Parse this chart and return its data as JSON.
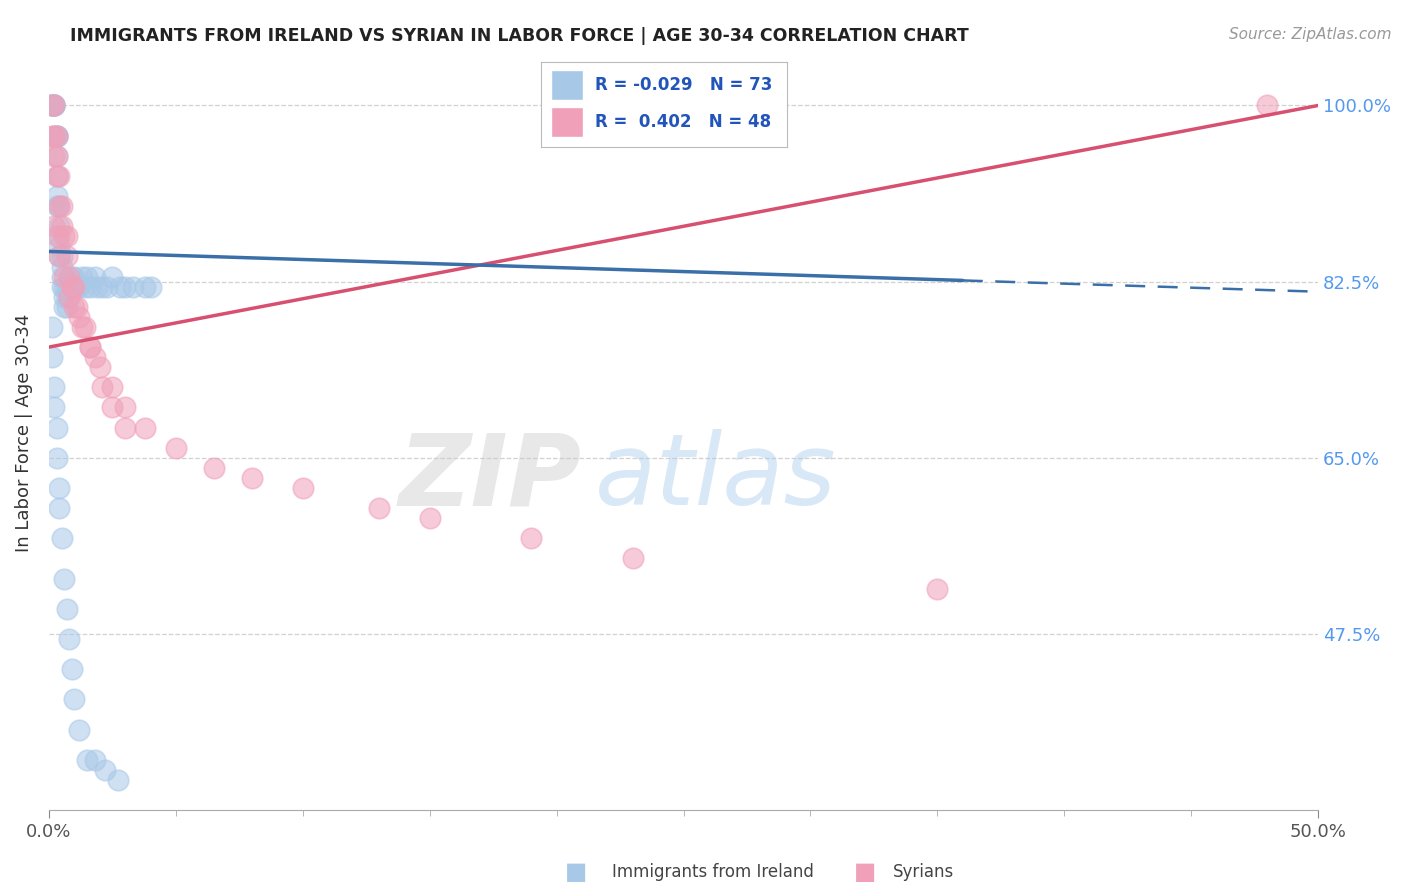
{
  "title": "IMMIGRANTS FROM IRELAND VS SYRIAN IN LABOR FORCE | AGE 30-34 CORRELATION CHART",
  "source": "Source: ZipAtlas.com",
  "ylabel": "In Labor Force | Age 30-34",
  "xmin": 0.0,
  "xmax": 0.5,
  "ymin": 0.3,
  "ymax": 1.05,
  "yticks": [
    0.475,
    0.65,
    0.825,
    1.0
  ],
  "ytick_labels": [
    "47.5%",
    "65.0%",
    "82.5%",
    "100.0%"
  ],
  "legend_blue_r": "-0.029",
  "legend_blue_n": "73",
  "legend_pink_r": "0.402",
  "legend_pink_n": "48",
  "blue_color": "#A8C8E8",
  "pink_color": "#F0A0B8",
  "blue_line_color": "#3A6FA8",
  "pink_line_color": "#D85070",
  "blue_scatter_x": [
    0.001,
    0.001,
    0.001,
    0.001,
    0.002,
    0.002,
    0.002,
    0.002,
    0.002,
    0.002,
    0.003,
    0.003,
    0.003,
    0.003,
    0.003,
    0.003,
    0.003,
    0.004,
    0.004,
    0.004,
    0.004,
    0.004,
    0.005,
    0.005,
    0.005,
    0.005,
    0.006,
    0.006,
    0.006,
    0.007,
    0.007,
    0.007,
    0.008,
    0.008,
    0.009,
    0.009,
    0.01,
    0.01,
    0.011,
    0.012,
    0.013,
    0.014,
    0.015,
    0.016,
    0.018,
    0.019,
    0.021,
    0.023,
    0.025,
    0.028,
    0.03,
    0.033,
    0.038,
    0.04,
    0.001,
    0.001,
    0.002,
    0.002,
    0.003,
    0.003,
    0.004,
    0.004,
    0.005,
    0.006,
    0.007,
    0.008,
    0.009,
    0.01,
    0.012,
    0.015,
    0.018,
    0.022,
    0.027
  ],
  "blue_scatter_y": [
    1.0,
    1.0,
    1.0,
    1.0,
    1.0,
    1.0,
    1.0,
    1.0,
    1.0,
    0.97,
    0.97,
    0.97,
    0.97,
    0.95,
    0.93,
    0.91,
    0.9,
    0.9,
    0.88,
    0.87,
    0.86,
    0.85,
    0.85,
    0.84,
    0.83,
    0.82,
    0.82,
    0.81,
    0.8,
    0.82,
    0.81,
    0.8,
    0.82,
    0.81,
    0.83,
    0.82,
    0.83,
    0.82,
    0.82,
    0.82,
    0.83,
    0.82,
    0.83,
    0.82,
    0.83,
    0.82,
    0.82,
    0.82,
    0.83,
    0.82,
    0.82,
    0.82,
    0.82,
    0.82,
    0.78,
    0.75,
    0.72,
    0.7,
    0.68,
    0.65,
    0.62,
    0.6,
    0.57,
    0.53,
    0.5,
    0.47,
    0.44,
    0.41,
    0.38,
    0.35,
    0.35,
    0.34,
    0.33
  ],
  "pink_scatter_x": [
    0.001,
    0.001,
    0.002,
    0.002,
    0.002,
    0.003,
    0.003,
    0.003,
    0.004,
    0.004,
    0.005,
    0.005,
    0.006,
    0.007,
    0.007,
    0.008,
    0.009,
    0.01,
    0.011,
    0.012,
    0.014,
    0.016,
    0.018,
    0.021,
    0.025,
    0.03,
    0.002,
    0.003,
    0.004,
    0.006,
    0.008,
    0.01,
    0.013,
    0.016,
    0.02,
    0.025,
    0.03,
    0.038,
    0.05,
    0.065,
    0.08,
    0.1,
    0.13,
    0.15,
    0.19,
    0.23,
    0.35,
    0.48
  ],
  "pink_scatter_y": [
    0.97,
    1.0,
    0.95,
    0.97,
    1.0,
    0.93,
    0.95,
    0.97,
    0.9,
    0.93,
    0.88,
    0.9,
    0.87,
    0.85,
    0.87,
    0.83,
    0.82,
    0.82,
    0.8,
    0.79,
    0.78,
    0.76,
    0.75,
    0.72,
    0.7,
    0.68,
    0.88,
    0.87,
    0.85,
    0.83,
    0.81,
    0.8,
    0.78,
    0.76,
    0.74,
    0.72,
    0.7,
    0.68,
    0.66,
    0.64,
    0.63,
    0.62,
    0.6,
    0.59,
    0.57,
    0.55,
    0.52,
    1.0
  ],
  "blue_line_x0": 0.0,
  "blue_line_x_solid_end": 0.36,
  "blue_line_x1": 0.5,
  "blue_line_y_intercept": 0.855,
  "blue_line_slope": -0.08,
  "pink_line_x0": 0.0,
  "pink_line_x1": 0.5,
  "pink_line_y_intercept": 0.76,
  "pink_line_slope": 0.48,
  "watermark_zip": "ZIP",
  "watermark_atlas": "atlas"
}
